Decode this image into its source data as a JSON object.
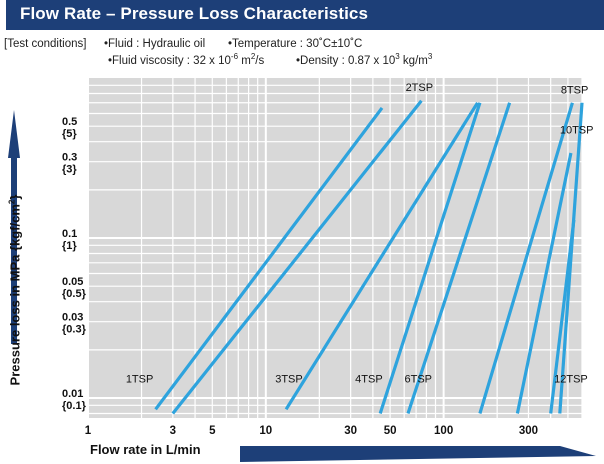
{
  "header": {
    "title": "Flow Rate – Pressure Loss Characteristics"
  },
  "conditions": {
    "label": "[Test conditions]",
    "fluid": "•Fluid : Hydraulic oil",
    "temperature": "•Temperature : 30˚C±10˚C",
    "viscosity_prefix": "•Fluid viscosity : 32 x 10",
    "viscosity_exp": "-6",
    "viscosity_unit": " m",
    "viscosity_unit_exp": "2",
    "viscosity_unit_suffix": "/s",
    "density_prefix": "•Density : 0.87 x 10",
    "density_exp": "3",
    "density_unit": " kg/m",
    "density_unit_exp": "3"
  },
  "axes": {
    "ylabel_main": "Pressure loss in MPa {kgf/cm",
    "ylabel_exp": "2",
    "ylabel_end": "}",
    "xlabel": "Flow rate in L/min"
  },
  "colors": {
    "title_bg": "#1d3f78",
    "plot_bg": "#d8d8d8",
    "grid": "#ffffff",
    "series": "#2ea3dd",
    "arrow": "#1d3f78"
  },
  "chart_data": {
    "type": "line",
    "x_scale": "log",
    "y_scale": "log",
    "xlim": [
      1,
      600
    ],
    "ylim": [
      0.0075,
      1.0
    ],
    "grid": true,
    "x_ticks": [
      {
        "value": 1,
        "label": "1"
      },
      {
        "value": 3,
        "label": "3"
      },
      {
        "value": 5,
        "label": "5"
      },
      {
        "value": 10,
        "label": "10"
      },
      {
        "value": 30,
        "label": "30"
      },
      {
        "value": 50,
        "label": "50"
      },
      {
        "value": 100,
        "label": "100"
      },
      {
        "value": 300,
        "label": "300"
      }
    ],
    "y_ticks": [
      {
        "value": 0.5,
        "label": "0.5",
        "sublabel": "{5}"
      },
      {
        "value": 0.3,
        "label": "0.3",
        "sublabel": "{3}"
      },
      {
        "value": 0.1,
        "label": "0.1",
        "sublabel": "{1}"
      },
      {
        "value": 0.05,
        "label": "0.05",
        "sublabel": "{0.5}"
      },
      {
        "value": 0.03,
        "label": "0.03",
        "sublabel": "{0.3}"
      },
      {
        "value": 0.01,
        "label": "0.01",
        "sublabel": "{0.1}"
      }
    ],
    "series": [
      {
        "name": "1TSP",
        "x": [
          2.4,
          45
        ],
        "y": [
          0.0085,
          0.65
        ]
      },
      {
        "name": "2TSP",
        "x": [
          3.0,
          75
        ],
        "y": [
          0.008,
          0.72
        ]
      },
      {
        "name": "3TSP",
        "x": [
          13,
          155
        ],
        "y": [
          0.0085,
          0.7
        ]
      },
      {
        "name": "4TSP",
        "x": [
          44,
          160
        ],
        "y": [
          0.008,
          0.7
        ]
      },
      {
        "name": "6TSP",
        "x": [
          63,
          235
        ],
        "y": [
          0.008,
          0.7
        ]
      },
      {
        "name": "8TSP",
        "x": [
          160,
          530
        ],
        "y": [
          0.008,
          0.7
        ]
      },
      {
        "name": "10TSP",
        "x": [
          260,
          520
        ],
        "y": [
          0.008,
          0.34
        ]
      },
      {
        "name": "12TSP",
        "x": [
          400,
          540
        ],
        "y": [
          0.008,
          0.13
        ]
      },
      {
        "name": "",
        "x": [
          450,
          600
        ],
        "y": [
          0.008,
          0.7
        ]
      }
    ],
    "labels": [
      {
        "text": "1TSP",
        "x": 1.95,
        "y": 0.0125
      },
      {
        "text": "2TSP",
        "x": 73,
        "y": 0.83
      },
      {
        "text": "3TSP",
        "x": 13.5,
        "y": 0.0125
      },
      {
        "text": "4TSP",
        "x": 38,
        "y": 0.0125
      },
      {
        "text": "6TSP",
        "x": 72,
        "y": 0.0125
      },
      {
        "text": "8TSP",
        "x": 545,
        "y": 0.8
      },
      {
        "text": "10TSP",
        "x": 560,
        "y": 0.45
      },
      {
        "text": "12TSP",
        "x": 520,
        "y": 0.0125
      }
    ]
  }
}
